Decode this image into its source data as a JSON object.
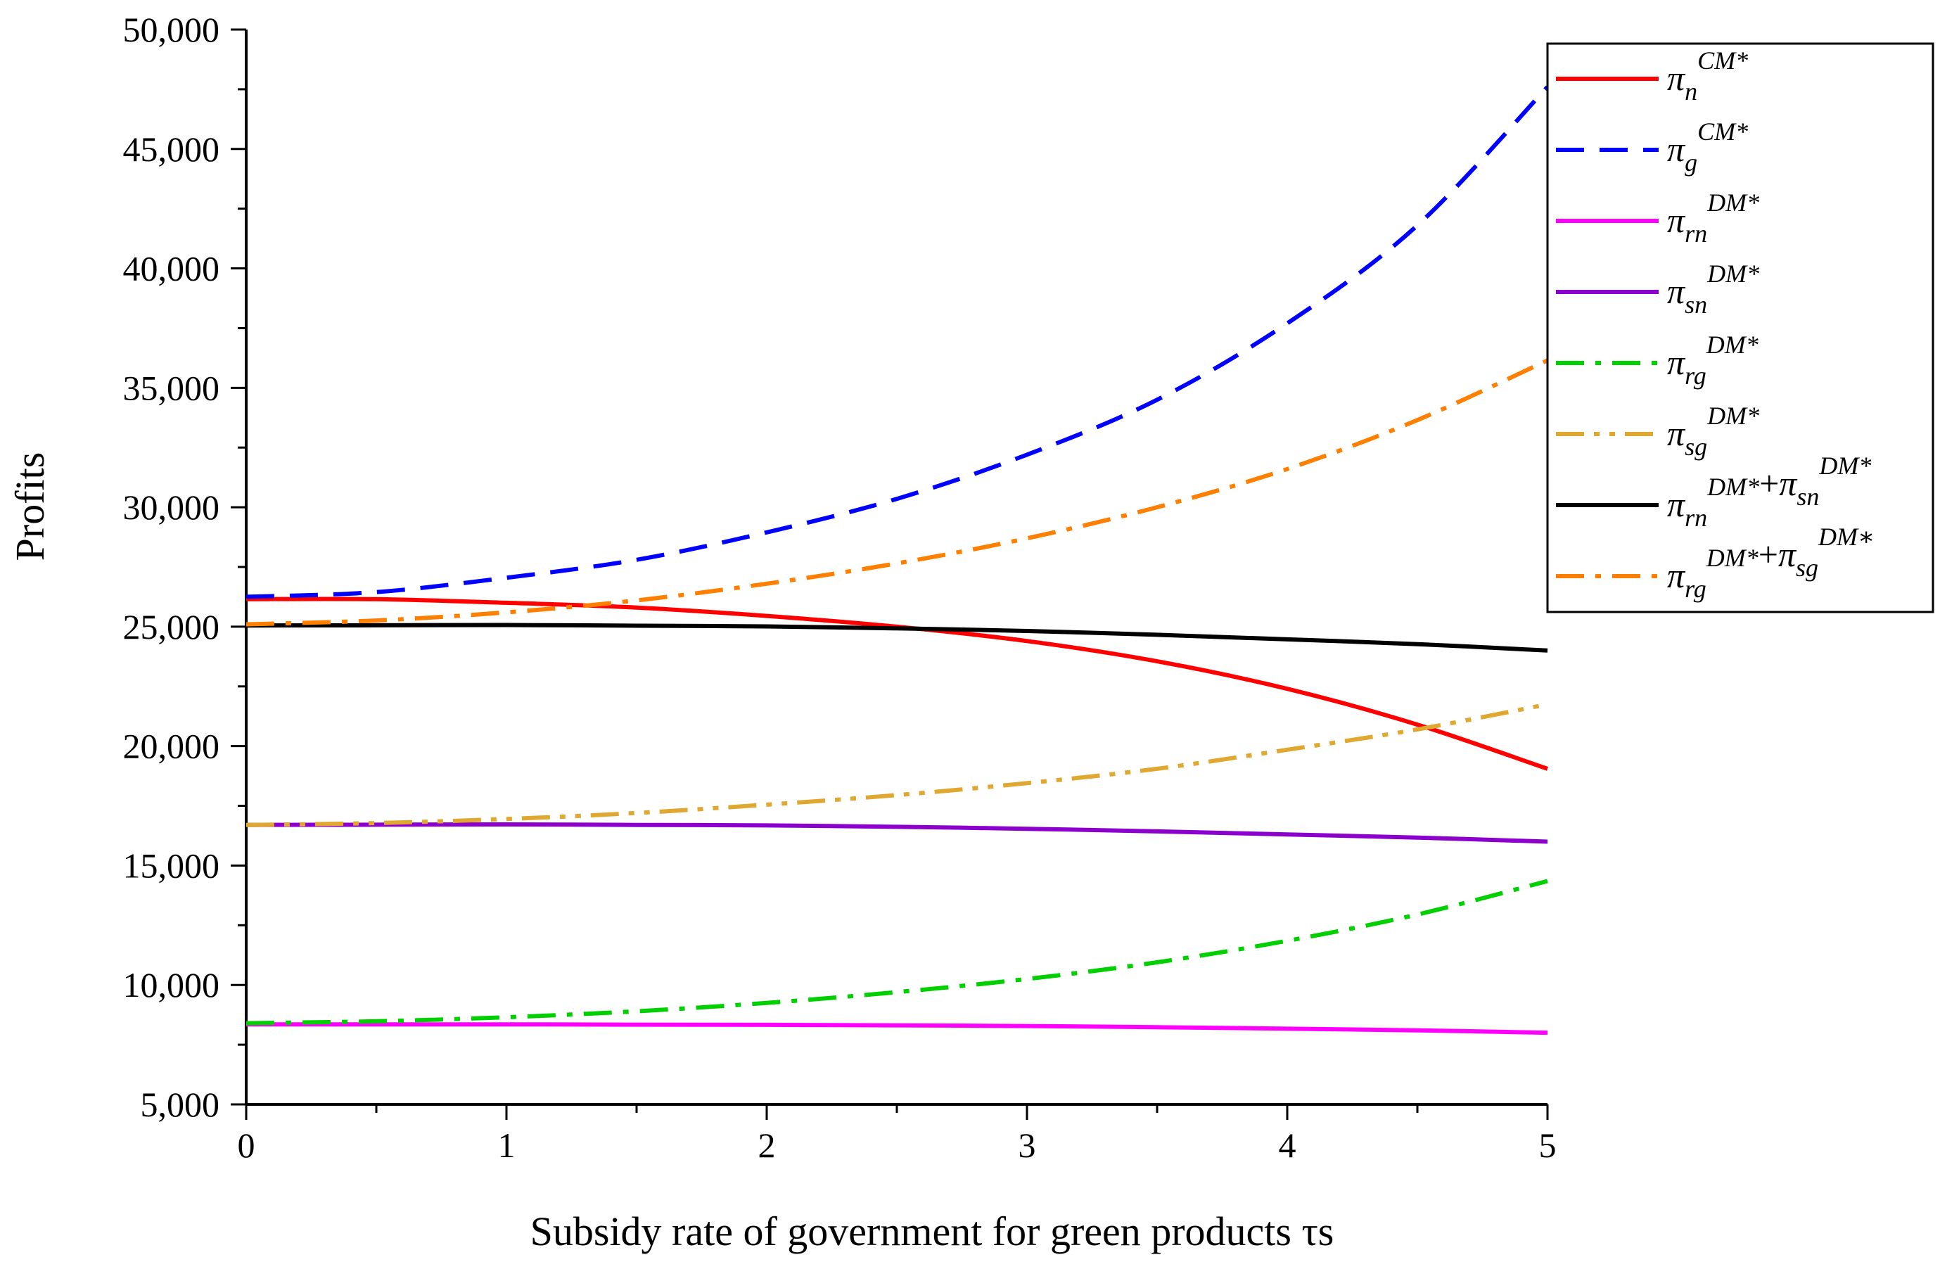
{
  "chart_data": {
    "type": "line",
    "xlabel": "Subsidy rate of government for green products τs",
    "ylabel": "Profits",
    "xlim": [
      0,
      5
    ],
    "ylim": [
      5000,
      50000
    ],
    "x_ticks": [
      "0",
      "1",
      "2",
      "3",
      "4",
      "5"
    ],
    "y_ticks": [
      "5,000",
      "10,000",
      "15,000",
      "20,000",
      "25,000",
      "30,000",
      "35,000",
      "40,000",
      "45,000",
      "50,000"
    ],
    "x": [
      0,
      0.5,
      1,
      1.5,
      2,
      2.5,
      3,
      3.5,
      4,
      4.5,
      5
    ],
    "series": [
      {
        "name": "π_n^CM*",
        "label_base": "π",
        "label_sub": "n",
        "label_sup": "CM*",
        "color": "#ff0000",
        "dash": "solid",
        "values": [
          26150,
          26150,
          26000,
          25800,
          25450,
          25000,
          24400,
          23550,
          22400,
          20900,
          19050
        ]
      },
      {
        "name": "π_g^CM*",
        "label_base": "π",
        "label_sub": "g",
        "label_sup": "CM*",
        "color": "#0000ff",
        "dash": "dash",
        "values": [
          26250,
          26450,
          27050,
          27800,
          28950,
          30350,
          32200,
          34500,
          37700,
          41800,
          47600
        ]
      },
      {
        "name": "π_rn^DM*",
        "label_base": "π",
        "label_sub": "rn",
        "label_sup": "DM*",
        "color": "#ff00ff",
        "dash": "solid",
        "values": [
          8350,
          8350,
          8350,
          8340,
          8330,
          8310,
          8280,
          8230,
          8170,
          8100,
          8000
        ]
      },
      {
        "name": "π_sn^DM*",
        "label_base": "π",
        "label_sub": "sn",
        "label_sup": "DM*",
        "color": "#8b00cc",
        "dash": "solid",
        "values": [
          16700,
          16710,
          16720,
          16700,
          16680,
          16620,
          16540,
          16430,
          16300,
          16170,
          16000
        ]
      },
      {
        "name": "π_rg^DM*",
        "label_base": "π",
        "label_sub": "rg",
        "label_sup": "DM*",
        "color": "#00d000",
        "dash": "dashdot",
        "values": [
          8400,
          8480,
          8650,
          8900,
          9250,
          9700,
          10250,
          10950,
          11850,
          12950,
          14350
        ]
      },
      {
        "name": "π_sg^DM*",
        "label_base": "π",
        "label_sub": "sg",
        "label_sup": "DM*",
        "color": "#e0a830",
        "dash": "dashdotdot",
        "values": [
          16700,
          16780,
          16950,
          17200,
          17550,
          17950,
          18450,
          19050,
          19850,
          20700,
          21750
        ]
      },
      {
        "name": "π_rn^DM*+π_sn^DM*",
        "label_base": "π",
        "label_sub": "rn",
        "label_sup": "DM*",
        "label_base2": "π",
        "label_sub2": "sn",
        "label_sup2": "DM*",
        "color": "#000000",
        "dash": "solid",
        "values": [
          25050,
          25060,
          25070,
          25040,
          25010,
          24930,
          24820,
          24660,
          24470,
          24270,
          24000
        ]
      },
      {
        "name": "π_rg^DM*+π_sg^DM*",
        "label_base": "π",
        "label_sub": "rg",
        "label_sup": "DM*",
        "label_base2": "π",
        "label_sub2": "sg",
        "label_sup2": "DM∗",
        "color": "#ff8000",
        "dash": "dashdot",
        "values": [
          25100,
          25260,
          25600,
          26100,
          26800,
          27650,
          28700,
          30000,
          31600,
          33650,
          36150
        ]
      }
    ],
    "legend_position": "top-right"
  }
}
